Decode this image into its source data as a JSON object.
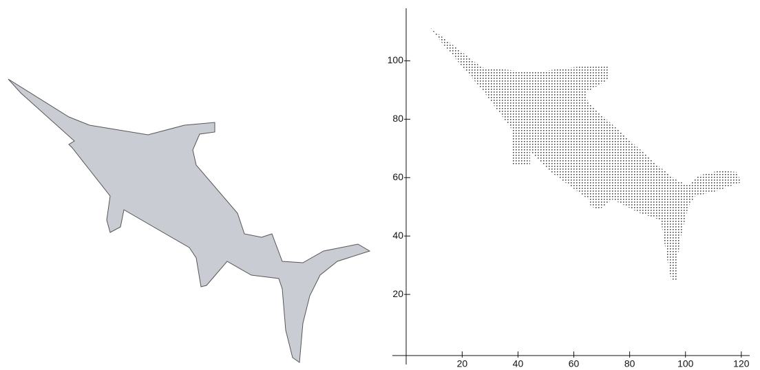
{
  "chart_data": {
    "type": "scatter",
    "xlim": [
      -5,
      123
    ],
    "ylim": [
      -4,
      118
    ],
    "xticks": [
      20,
      40,
      60,
      80,
      100,
      120
    ],
    "yticks": [
      20,
      40,
      60,
      80,
      100
    ]
  }
}
